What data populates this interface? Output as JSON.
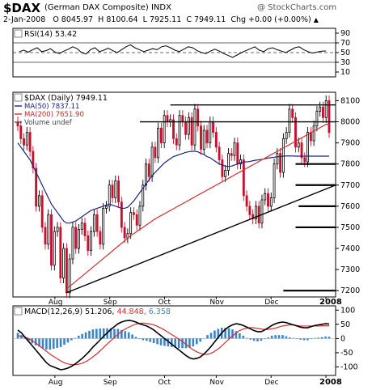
{
  "header": {
    "symbol": "$DAX",
    "name": "(German DAX Composite)  INDX",
    "watermark": "@ StockCharts.com",
    "quote": {
      "date": "2-Jan-2008",
      "open": "O 8045.97",
      "high": "H 8100.64",
      "low": "L 7925.11",
      "close": "C 7949.11",
      "change": "Chg +0.00 (+0.00%)",
      "change_icon": "triangle-up-icon"
    }
  },
  "colors": {
    "up_candle": "#000000",
    "down_candle": "#c8102e",
    "ma50": "#1a237e",
    "ma200": "#d32f2f",
    "macd": "#000000",
    "signal": "#d32f2f",
    "histogram": "#3a85c8",
    "trendline": "#000000",
    "support_line": "#000000"
  },
  "chart_data": [
    {
      "type": "line",
      "panel": "rsi",
      "label": "RSI(14) 53.42",
      "ticks": [
        10,
        30,
        50,
        70,
        90
      ],
      "ylim": [
        0,
        100
      ],
      "reference_lines": [
        30,
        50,
        70
      ],
      "values": [
        52,
        55,
        51,
        56,
        60,
        52,
        54,
        58,
        51,
        48,
        53,
        57,
        62,
        58,
        50,
        47,
        56,
        60,
        52,
        55,
        59,
        54,
        50,
        56,
        62,
        66,
        60,
        56,
        52,
        55,
        58,
        56,
        62,
        64,
        60,
        55,
        52,
        57,
        62,
        60,
        54,
        50,
        48,
        53,
        57,
        53,
        48,
        44,
        40,
        45,
        50,
        54,
        58,
        62,
        55,
        52,
        58,
        60,
        56,
        53,
        50,
        55,
        60,
        62,
        56,
        52,
        49,
        51,
        53,
        53.42
      ]
    },
    {
      "type": "candlestick",
      "panel": "price",
      "label": "$DAX (Daily) 7949.11",
      "legend": [
        {
          "name": "MA(50) 7837.11",
          "color": "#1a237e"
        },
        {
          "name": "MA(200) 7651.90",
          "color": "#d32f2f"
        },
        {
          "name": "Volume undef",
          "color": "#555555"
        }
      ],
      "yticks": [
        7200,
        7300,
        7400,
        7500,
        7600,
        7700,
        7800,
        7900,
        8000,
        8100
      ],
      "ylim": [
        7170,
        8140
      ],
      "xticks": [
        "Aug",
        "Sep",
        "Oct",
        "Nov",
        "Dec",
        "2008"
      ],
      "close": [
        7980,
        7920,
        7890,
        7950,
        7860,
        7780,
        7600,
        7650,
        7500,
        7420,
        7560,
        7320,
        7480,
        7500,
        7260,
        7400,
        7190,
        7350,
        7500,
        7400,
        7490,
        7520,
        7460,
        7390,
        7480,
        7560,
        7480,
        7420,
        7590,
        7600,
        7700,
        7640,
        7720,
        7620,
        7500,
        7450,
        7470,
        7570,
        7560,
        7510,
        7600,
        7700,
        7800,
        7740,
        7880,
        7830,
        7970,
        7900,
        8030,
        8000,
        8010,
        7920,
        7890,
        8030,
        8000,
        7940,
        8020,
        7890,
        8060,
        7980,
        7870,
        7960,
        7900,
        8000,
        7950,
        7880,
        7820,
        7740,
        7770,
        7850,
        7840,
        7900,
        7800,
        7820,
        7650,
        7600,
        7560,
        7540,
        7600,
        7520,
        7630,
        7660,
        7600,
        7640,
        7800,
        7850,
        7760,
        7920,
        7950,
        8060,
        8020,
        7880,
        7900,
        7830,
        7810,
        7950,
        7910,
        7980,
        8050,
        8070,
        8020,
        8100,
        7949
      ],
      "ma50": [
        7900,
        7880,
        7860,
        7840,
        7820,
        7790,
        7760,
        7730,
        7700,
        7670,
        7640,
        7610,
        7590,
        7570,
        7550,
        7530,
        7520,
        7520,
        7525,
        7530,
        7540,
        7550,
        7560,
        7570,
        7580,
        7585,
        7590,
        7595,
        7600,
        7605,
        7610,
        7605,
        7600,
        7595,
        7590,
        7590,
        7595,
        7610,
        7625,
        7645,
        7665,
        7685,
        7705,
        7725,
        7745,
        7760,
        7775,
        7790,
        7805,
        7815,
        7825,
        7835,
        7840,
        7845,
        7850,
        7855,
        7858,
        7860,
        7860,
        7858,
        7850,
        7845,
        7835,
        7830,
        7820,
        7810,
        7800,
        7795,
        7790,
        7788,
        7790,
        7795,
        7800,
        7805,
        7810,
        7810,
        7812,
        7815,
        7818,
        7820,
        7822,
        7825,
        7828,
        7830,
        7832,
        7834,
        7836,
        7837,
        7838,
        7838,
        7838,
        7837,
        7837,
        7837,
        7837,
        7837,
        7837,
        7837,
        7837,
        7837,
        7837,
        7837,
        7837.11
      ],
      "ma200": [
        null,
        null,
        null,
        null,
        null,
        null,
        null,
        null,
        null,
        null,
        null,
        null,
        null,
        null,
        null,
        null,
        7210,
        7220,
        7232,
        7244,
        7256,
        7268,
        7280,
        7292,
        7304,
        7316,
        7328,
        7340,
        7352,
        7364,
        7376,
        7388,
        7400,
        7412,
        7424,
        7436,
        7448,
        7460,
        7470,
        7480,
        7490,
        7500,
        7510,
        7520,
        7530,
        7540,
        7548,
        7556,
        7564,
        7572,
        7580,
        7588,
        7596,
        7604,
        7612,
        7620,
        7628,
        7636,
        7644,
        7652,
        7660,
        7668,
        7676,
        7684,
        7692,
        7700,
        7708,
        7716,
        7724,
        7732,
        7740,
        7748,
        7756,
        7764,
        7772,
        7780,
        7788,
        7796,
        7804,
        7812,
        7820,
        7828,
        7836,
        7844,
        7852,
        7860,
        7868,
        7876,
        7884,
        7892,
        7900,
        7908,
        7916,
        7924,
        7932,
        7940,
        7948,
        7956,
        7964,
        7972,
        7980,
        7988,
        7651.9
      ],
      "annotations": {
        "trendline_from": [
          7190,
          8050
        ],
        "support_levels": [
          8080,
          8000,
          7800,
          7700,
          7600,
          7500,
          7200
        ]
      }
    },
    {
      "type": "line",
      "panel": "macd",
      "label": "MACD(12,26,9) 51.206, 44.848, 6.358",
      "yticks": [
        -100,
        -50,
        0,
        50,
        100
      ],
      "ylim": [
        -130,
        115
      ],
      "xticks": [
        "Aug",
        "Sep",
        "Oct",
        "Nov",
        "Dec",
        "2008"
      ],
      "series": [
        {
          "name": "MACD",
          "values": [
            30,
            20,
            5,
            -10,
            -25,
            -40,
            -55,
            -70,
            -85,
            -95,
            -100,
            -105,
            -110,
            -108,
            -104,
            -98,
            -90,
            -80,
            -70,
            -58,
            -45,
            -30,
            -18,
            -5,
            8,
            20,
            32,
            42,
            52,
            58,
            62,
            64,
            62,
            58,
            52,
            48,
            44,
            38,
            30,
            20,
            10,
            0,
            -10,
            -20,
            -30,
            -40,
            -50,
            -60,
            -68,
            -72,
            -70,
            -65,
            -55,
            -42,
            -28,
            -12,
            4,
            20,
            32,
            42,
            48,
            52,
            50,
            46,
            40,
            34,
            28,
            24,
            24,
            30,
            38,
            46,
            52,
            56,
            58,
            56,
            52,
            48,
            44,
            40,
            38,
            38,
            42,
            46,
            48,
            50,
            52,
            51.2
          ]
        },
        {
          "name": "signal",
          "values": [
            10,
            8,
            5,
            0,
            -8,
            -16,
            -26,
            -36,
            -46,
            -56,
            -64,
            -72,
            -80,
            -86,
            -90,
            -92,
            -92,
            -90,
            -86,
            -80,
            -72,
            -62,
            -52,
            -40,
            -28,
            -16,
            -4,
            8,
            18,
            28,
            36,
            42,
            48,
            52,
            54,
            54,
            52,
            50,
            46,
            40,
            34,
            26,
            18,
            10,
            2,
            -6,
            -16,
            -26,
            -36,
            -44,
            -50,
            -54,
            -56,
            -54,
            -48,
            -40,
            -30,
            -18,
            -6,
            6,
            16,
            26,
            32,
            36,
            38,
            38,
            36,
            34,
            32,
            32,
            34,
            36,
            40,
            44,
            46,
            48,
            48,
            46,
            44,
            44,
            44,
            44,
            44,
            44,
            44.8,
            44.8,
            44.848
          ]
        },
        {
          "name": "histogram",
          "values": [
            6.358
          ]
        }
      ]
    }
  ]
}
